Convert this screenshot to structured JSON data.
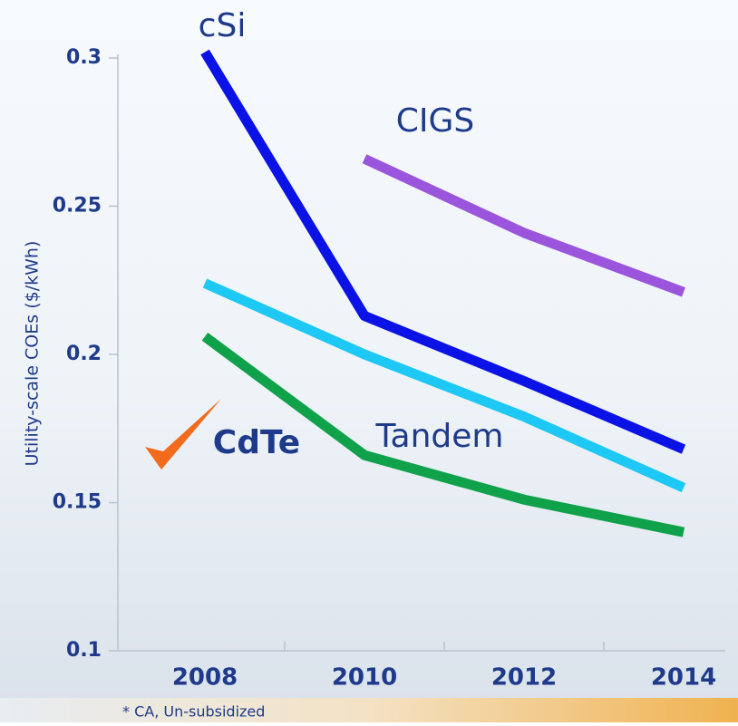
{
  "chart_data": {
    "type": "line",
    "y_label": "Utility-scale COEs ($/kWh)",
    "footnote": "* CA, Un-subsidized",
    "categories": [
      "2008",
      "2010",
      "2012",
      "2014"
    ],
    "series": [
      {
        "name": "cSi",
        "color": "#0a12e6",
        "values": [
          0.302,
          0.213,
          0.191,
          0.168
        ]
      },
      {
        "name": "CIGS",
        "color": "#9b55dd",
        "values": [
          null,
          0.266,
          0.241,
          0.221
        ]
      },
      {
        "name": "Tandem",
        "color": "#1ec8f5",
        "values": [
          0.224,
          0.2,
          0.179,
          0.155
        ]
      },
      {
        "name": "CdTe",
        "color": "#0fa24a",
        "values": [
          0.206,
          0.166,
          0.151,
          0.14
        ]
      }
    ],
    "ylim": [
      0.1,
      0.3
    ],
    "yticks": [
      0.1,
      0.15,
      0.2,
      0.25,
      0.3
    ]
  }
}
